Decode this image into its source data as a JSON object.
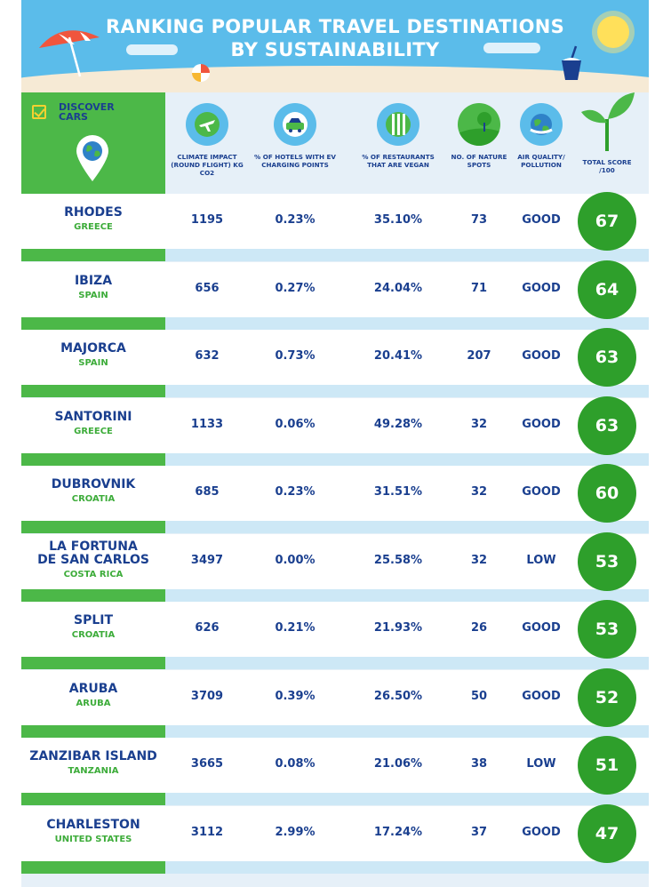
{
  "header": {
    "title_line1": "RANKING POPULAR TRAVEL DESTINATIONS",
    "title_line2": "BY SUSTAINABILITY"
  },
  "brand": {
    "line1": "DISCOVER",
    "line2": "CARS"
  },
  "columns": [
    {
      "icon": "airplane-icon",
      "label": "CLIMATE IMPACT (ROUND FLIGHT) KG CO2"
    },
    {
      "icon": "ev-charging-car-icon",
      "label": "% OF HOTELS WITH EV CHARGING POINTS"
    },
    {
      "icon": "cutlery-icon",
      "label": "% OF RESTAURANTS THAT ARE VEGAN"
    },
    {
      "icon": "tree-icon",
      "label": "NO. OF NATURE SPOTS"
    },
    {
      "icon": "globe-icon",
      "label": "AIR QUALITY/ POLLUTION"
    },
    {
      "icon": "sprout-icon",
      "label": "TOTAL SCORE /100"
    }
  ],
  "colors": {
    "header_sky": "#5bbcea",
    "brand_green": "#4cb848",
    "score_green": "#2e9f2b",
    "text_navy": "#1a3f8f",
    "country_green": "#3dac3a"
  },
  "chart_data": {
    "type": "table",
    "title": "RANKING POPULAR TRAVEL DESTINATIONS BY SUSTAINABILITY",
    "headers": [
      "CLIMATE IMPACT (ROUND FLIGHT) KG CO2",
      "% OF HOTELS WITH EV CHARGING POINTS",
      "% OF RESTAURANTS THAT ARE VEGAN",
      "NO. OF NATURE SPOTS",
      "AIR QUALITY/ POLLUTION",
      "TOTAL SCORE /100"
    ],
    "rows": [
      {
        "city": "RHODES",
        "country": "GREECE",
        "climate": "1195",
        "ev_hotels": "0.23%",
        "vegan": "35.10%",
        "nature": "73",
        "air": "GOOD",
        "score": "67"
      },
      {
        "city": "IBIZA",
        "country": "SPAIN",
        "climate": "656",
        "ev_hotels": "0.27%",
        "vegan": "24.04%",
        "nature": "71",
        "air": "GOOD",
        "score": "64"
      },
      {
        "city": "MAJORCA",
        "country": "SPAIN",
        "climate": "632",
        "ev_hotels": "0.73%",
        "vegan": "20.41%",
        "nature": "207",
        "air": "GOOD",
        "score": "63"
      },
      {
        "city": "SANTORINI",
        "country": "GREECE",
        "climate": "1133",
        "ev_hotels": "0.06%",
        "vegan": "49.28%",
        "nature": "32",
        "air": "GOOD",
        "score": "63"
      },
      {
        "city": "DUBROVNIK",
        "country": "CROATIA",
        "climate": "685",
        "ev_hotels": "0.23%",
        "vegan": "31.51%",
        "nature": "32",
        "air": "GOOD",
        "score": "60"
      },
      {
        "city": "LA FORTUNA DE SAN CARLOS",
        "country": "COSTA RICA",
        "climate": "3497",
        "ev_hotels": "0.00%",
        "vegan": "25.58%",
        "nature": "32",
        "air": "LOW",
        "score": "53"
      },
      {
        "city": "SPLIT",
        "country": "CROATIA",
        "climate": "626",
        "ev_hotels": "0.21%",
        "vegan": "21.93%",
        "nature": "26",
        "air": "GOOD",
        "score": "53"
      },
      {
        "city": "ARUBA",
        "country": "ARUBA",
        "climate": "3709",
        "ev_hotels": "0.39%",
        "vegan": "26.50%",
        "nature": "50",
        "air": "GOOD",
        "score": "52"
      },
      {
        "city": "ZANZIBAR ISLAND",
        "country": "TANZANIA",
        "climate": "3665",
        "ev_hotels": "0.08%",
        "vegan": "21.06%",
        "nature": "38",
        "air": "LOW",
        "score": "51"
      },
      {
        "city": "CHARLESTON",
        "country": "UNITED STATES",
        "climate": "3112",
        "ev_hotels": "2.99%",
        "vegan": "17.24%",
        "nature": "37",
        "air": "GOOD",
        "score": "47"
      }
    ]
  }
}
